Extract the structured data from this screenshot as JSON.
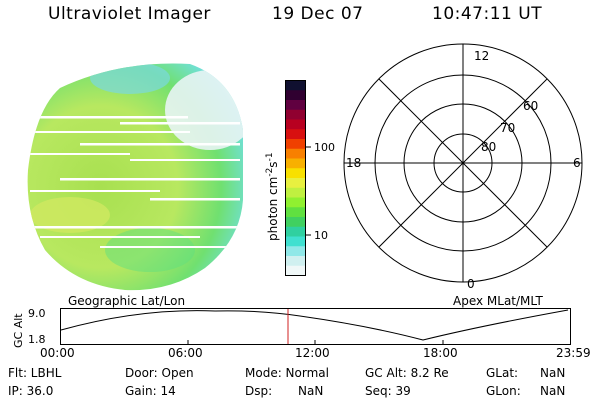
{
  "header": {
    "title": "Ultraviolet Imager",
    "date": "19 Dec 07",
    "time": "10:47:11 UT"
  },
  "colorbar": {
    "unit_label": "photon cm",
    "unit_exp1": "-2",
    "unit_mid": "s",
    "unit_exp2": "-1",
    "ticks": [
      "100",
      "10"
    ],
    "colors": [
      "#101030",
      "#300030",
      "#600040",
      "#900030",
      "#b80020",
      "#d81010",
      "#f04000",
      "#f88000",
      "#f8b000",
      "#f8e000",
      "#e8f040",
      "#c0f040",
      "#90f030",
      "#60e040",
      "#40d060",
      "#30d0a0",
      "#40e0d0",
      "#90e8e8",
      "#d0f0f0",
      "#f0f8f8"
    ]
  },
  "left_panel": {
    "label": "Geographic Lat/Lon"
  },
  "right_panel": {
    "label": "Apex MLat/MLT",
    "mlt_labels": {
      "top": "12",
      "left": "18",
      "right": "6",
      "bottom": "0"
    },
    "lat_labels": [
      "80",
      "70",
      "60"
    ]
  },
  "timeline": {
    "axis_label": "GC Alt",
    "y_ticks": [
      "9.0",
      "1.8"
    ],
    "x_ticks": [
      "00:00",
      "06:00",
      "12:00",
      "18:00",
      "23:59"
    ],
    "marker_color": "#d02020"
  },
  "info": {
    "flt": "Flt: LBHL",
    "door": "Door: Open",
    "mode": "Mode: Normal",
    "gcalt": "GC Alt: 8.2 Re",
    "glat_label": "GLat:",
    "glat_val": "NaN",
    "ip": "IP: 36.0",
    "gain": "Gain: 14",
    "dsp_label": "Dsp:",
    "dsp_val": "NaN",
    "seq": "Seq: 39",
    "glon_label": "GLon:",
    "glon_val": "NaN"
  }
}
